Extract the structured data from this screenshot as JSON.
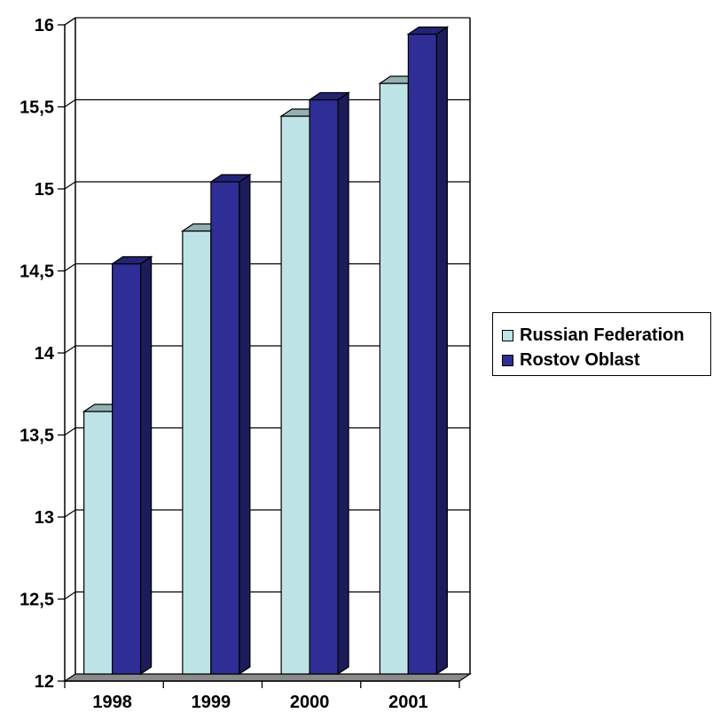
{
  "chart_data": {
    "type": "bar",
    "categories": [
      "1998",
      "1999",
      "2000",
      "2001"
    ],
    "series": [
      {
        "name": "Russian Federation",
        "values": [
          13.6,
          14.7,
          15.4,
          15.6
        ]
      },
      {
        "name": "Rostov Oblast",
        "values": [
          14.5,
          15.0,
          15.5,
          15.9
        ]
      }
    ],
    "ylim": [
      12,
      16
    ],
    "yticks": [
      "12",
      "12,5",
      "13",
      "13,5",
      "14",
      "14,5",
      "15",
      "15,5",
      "16"
    ],
    "grid": true,
    "legend_position": "right",
    "title": "",
    "xlabel": "",
    "ylabel": "",
    "colors": {
      "russian_federation": "#bde3e6",
      "rostov_oblast": "#2e2e96",
      "floor": "#8a8a8a"
    }
  }
}
